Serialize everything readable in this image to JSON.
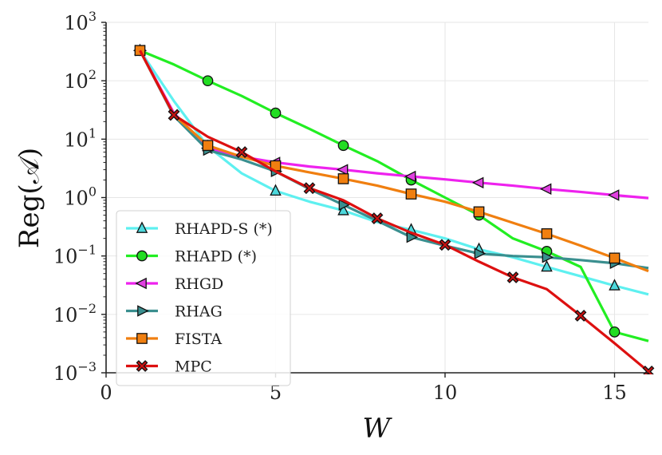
{
  "chart_data": {
    "type": "line",
    "title": "",
    "xlabel": "W",
    "ylabel": "Reg(𝒜)",
    "xscale": "linear",
    "yscale": "log",
    "xlim": [
      0,
      16
    ],
    "ylim": [
      0.001,
      1000
    ],
    "xticks": [
      0,
      5,
      10,
      15
    ],
    "yticks": [
      {
        "base": "10",
        "exp": "3",
        "value": 1000
      },
      {
        "base": "10",
        "exp": "2",
        "value": 100
      },
      {
        "base": "10",
        "exp": "1",
        "value": 10
      },
      {
        "base": "10",
        "exp": "0",
        "value": 1
      },
      {
        "base": "10",
        "exp": "−1",
        "value": 0.1
      },
      {
        "base": "10",
        "exp": "−2",
        "value": 0.01
      },
      {
        "base": "10",
        "exp": "−3",
        "value": 0.001
      }
    ],
    "grid": true,
    "legend_position": "lower-left",
    "series": [
      {
        "name": "RHAPD-S (*)",
        "color": "#5ef0f0",
        "marker": "triangle-up",
        "marker_fill": "#4dd8dc",
        "x": [
          1,
          2,
          3,
          4,
          5,
          6,
          7,
          8,
          9,
          10,
          11,
          12,
          13,
          14,
          15,
          16
        ],
        "y": [
          330,
          45,
          7.5,
          2.6,
          1.3,
          0.85,
          0.6,
          0.38,
          0.28,
          0.2,
          0.13,
          0.095,
          0.065,
          0.045,
          0.031,
          0.022
        ],
        "marker_x": [
          1,
          3,
          5,
          7,
          9,
          11,
          13,
          15
        ]
      },
      {
        "name": "RHAPD (*)",
        "color": "#22ee22",
        "marker": "circle",
        "marker_fill": "#22dd22",
        "x": [
          1,
          2,
          3,
          4,
          5,
          6,
          7,
          8,
          9,
          10,
          11,
          12,
          13,
          14,
          15,
          16
        ],
        "y": [
          330,
          190,
          100,
          55,
          28,
          15,
          7.8,
          4.2,
          2.0,
          1.0,
          0.5,
          0.2,
          0.12,
          0.065,
          0.005,
          0.0035
        ],
        "marker_x": [
          1,
          3,
          5,
          7,
          9,
          11,
          13,
          15
        ]
      },
      {
        "name": "RHGD",
        "color": "#ee22ee",
        "marker": "triangle-left",
        "marker_fill": "#e040e0",
        "x": [
          1,
          2,
          3,
          4,
          5,
          6,
          7,
          8,
          9,
          10,
          11,
          12,
          13,
          14,
          15,
          16
        ],
        "y": [
          330,
          28,
          7.0,
          5.0,
          4.0,
          3.4,
          3.0,
          2.6,
          2.3,
          2.05,
          1.8,
          1.6,
          1.4,
          1.25,
          1.1,
          0.98
        ],
        "marker_x": [
          1,
          3,
          5,
          7,
          9,
          11,
          13,
          15
        ]
      },
      {
        "name": "RHAG",
        "color": "#3a8f8f",
        "marker": "triangle-right",
        "marker_fill": "#3a8f8f",
        "x": [
          1,
          2,
          3,
          4,
          5,
          6,
          7,
          8,
          9,
          10,
          11,
          12,
          13,
          14,
          15,
          16
        ],
        "y": [
          330,
          25,
          6.5,
          4.5,
          2.8,
          1.4,
          0.75,
          0.4,
          0.21,
          0.15,
          0.11,
          0.1,
          0.095,
          0.085,
          0.075,
          0.062
        ],
        "marker_x": [
          1,
          3,
          5,
          7,
          9,
          11,
          13,
          15
        ]
      },
      {
        "name": "FISTA",
        "color": "#f07f10",
        "marker": "square",
        "marker_fill": "#f07f10",
        "x": [
          1,
          2,
          3,
          4,
          5,
          6,
          7,
          8,
          9,
          10,
          11,
          12,
          13,
          14,
          15,
          16
        ],
        "y": [
          330,
          26,
          7.8,
          5.0,
          3.5,
          2.7,
          2.1,
          1.6,
          1.15,
          0.85,
          0.57,
          0.37,
          0.24,
          0.15,
          0.092,
          0.055
        ],
        "marker_x": [
          1,
          3,
          5,
          7,
          9,
          11,
          13,
          15
        ]
      },
      {
        "name": "MPC",
        "color": "#dd1010",
        "marker": "x-filled",
        "marker_fill": "#cc1111",
        "x": [
          1,
          2,
          3,
          4,
          5,
          6,
          7,
          8,
          9,
          10,
          11,
          12,
          13,
          14,
          15,
          16
        ],
        "y": [
          330,
          26,
          11,
          6.0,
          2.8,
          1.45,
          0.9,
          0.44,
          0.25,
          0.155,
          0.08,
          0.043,
          0.027,
          0.0095,
          0.0032,
          0.00105
        ],
        "marker_x": [
          2,
          4,
          6,
          8,
          10,
          12,
          14,
          16
        ]
      }
    ]
  }
}
